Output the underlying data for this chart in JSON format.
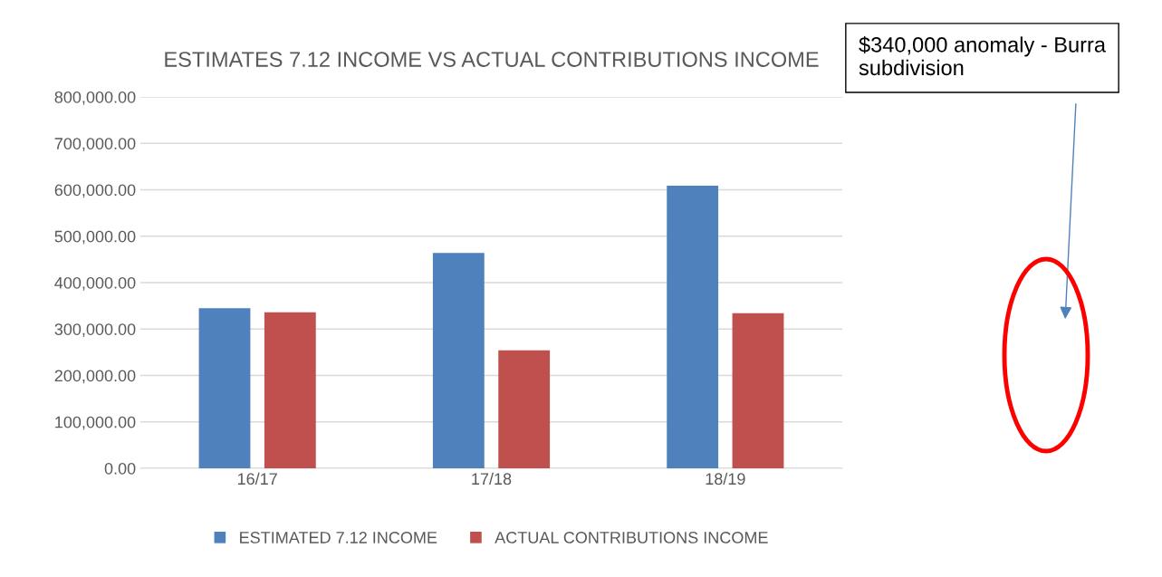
{
  "chart_data": {
    "type": "bar",
    "title": "ESTIMATES 7.12 INCOME VS ACTUAL CONTRIBUTIONS INCOME",
    "categories": [
      "16/17",
      "17/18",
      "18/19"
    ],
    "series": [
      {
        "name": "ESTIMATED 7.12 INCOME",
        "color": "#4f81bd",
        "values": [
          345000,
          464000,
          609000
        ]
      },
      {
        "name": "ACTUAL CONTRIBUTIONS INCOME",
        "color": "#c0504d",
        "values": [
          336000,
          254000,
          334000
        ]
      }
    ],
    "ylim": [
      0,
      800000
    ],
    "yticks": [
      {
        "value": 0,
        "label": "0.00"
      },
      {
        "value": 100000,
        "label": "100,000.00"
      },
      {
        "value": 200000,
        "label": "200,000.00"
      },
      {
        "value": 300000,
        "label": "300,000.00"
      },
      {
        "value": 400000,
        "label": "400,000.00"
      },
      {
        "value": 500000,
        "label": "500,000.00"
      },
      {
        "value": 600000,
        "label": "600,000.00"
      },
      {
        "value": 700000,
        "label": "700,000.00"
      },
      {
        "value": 800000,
        "label": "800,000.00"
      }
    ],
    "grid": "y",
    "legend": "bottom",
    "annotations": [
      "$340,000 anomaly - Burra subdivision"
    ]
  }
}
